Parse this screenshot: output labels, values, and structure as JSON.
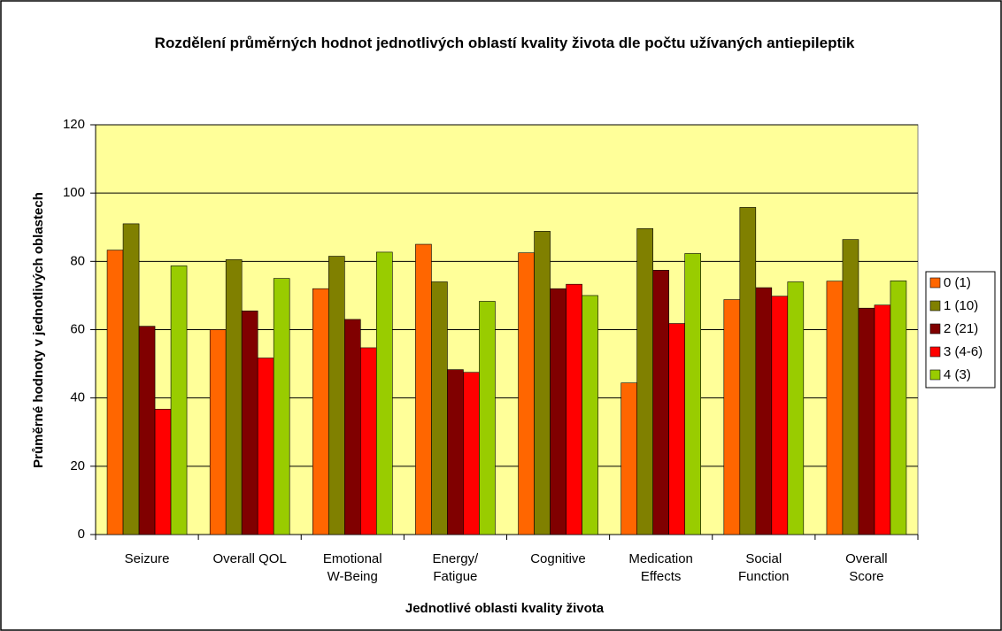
{
  "chart_data": {
    "type": "bar",
    "title": "Rozdělení průměrných hodnot jednotlivých oblastí kvality života dle počtu užívaných antiepileptik",
    "xlabel": "Jednotlivé oblasti kvality života",
    "ylabel": "Průměrné hodnoty v jednotlivých oblastech",
    "categories": [
      "Seizure",
      "Overall QOL",
      "Emotional\nW-Being",
      "Energy/\nFatigue",
      "Cognitive",
      "Medication\nEffects",
      "Social\nFunction",
      "Overall\nScore"
    ],
    "series": [
      {
        "name": "0 (1)",
        "color": "#ff6600",
        "values": [
          83.3,
          60,
          72,
          85,
          82.5,
          44.4,
          68.8,
          74.2
        ]
      },
      {
        "name": "1 (10)",
        "color": "#808000",
        "values": [
          91,
          80.5,
          81.5,
          74,
          88.8,
          89.6,
          95.8,
          86.4
        ]
      },
      {
        "name": "2 (21)",
        "color": "#800000",
        "values": [
          61,
          65.5,
          63,
          48.3,
          72,
          77.4,
          72.3,
          66.3
        ]
      },
      {
        "name": "3 (4-6)",
        "color": "#ff0000",
        "values": [
          36.7,
          51.7,
          54.7,
          47.5,
          73.3,
          61.8,
          69.8,
          67.2
        ]
      },
      {
        "name": "4 (3)",
        "color": "#99cc00",
        "values": [
          78.7,
          75,
          82.7,
          68.3,
          70,
          82.3,
          74,
          74.3
        ]
      }
    ],
    "ylim": [
      0,
      120
    ],
    "yticks": [
      0,
      20,
      40,
      60,
      80,
      100,
      120
    ],
    "grid": true,
    "legend": "right"
  }
}
